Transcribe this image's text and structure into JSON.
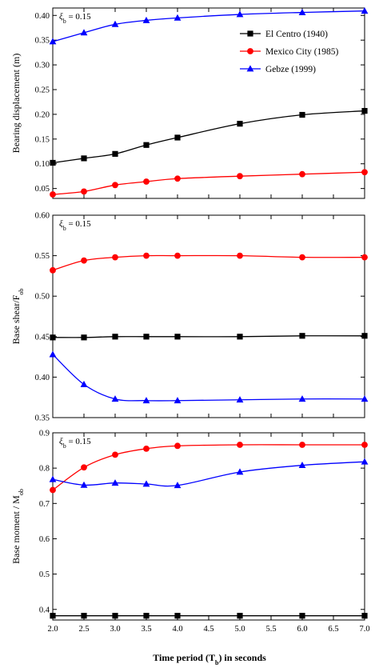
{
  "xlabel": "Time period (T",
  "xlabel_sub": "b",
  "xlabel_tail": ") in seconds",
  "colors": {
    "el_centro": "#000000",
    "mexico": "#ff0000",
    "gebze": "#0000ff"
  },
  "chart_data": [
    {
      "type": "line",
      "ylabel": "Bearing displacement (m)",
      "annotation_symbol": "ξ",
      "annotation_sub": "b",
      "annotation_tail": " = 0.15",
      "xlim": [
        2.0,
        7.0
      ],
      "ylim": [
        0.03,
        0.415
      ],
      "yticks": [
        "0.05",
        "0.10",
        "0.15",
        "0.20",
        "0.25",
        "0.30",
        "0.35",
        "0.40"
      ],
      "x": [
        2.0,
        2.5,
        3.0,
        3.5,
        4.0,
        5.0,
        6.0,
        7.0
      ],
      "legend_position": "top-right",
      "series": [
        {
          "name": "El Centro (1940)",
          "marker": "square",
          "color_key": "el_centro",
          "values": [
            0.102,
            0.111,
            0.12,
            0.138,
            0.153,
            0.181,
            0.199,
            0.207
          ]
        },
        {
          "name": "Mexico City (1985)",
          "marker": "circle",
          "color_key": "mexico",
          "values": [
            0.038,
            0.044,
            0.057,
            0.064,
            0.07,
            0.075,
            0.079,
            0.083
          ]
        },
        {
          "name": "Gebze (1999)",
          "marker": "triangle",
          "color_key": "gebze",
          "values": [
            0.347,
            0.365,
            0.382,
            0.39,
            0.395,
            0.402,
            0.406,
            0.409
          ]
        }
      ]
    },
    {
      "type": "line",
      "ylabel": "Base shear/F",
      "ylabel_sub": "ob",
      "annotation_symbol": "ξ",
      "annotation_sub": "b",
      "annotation_tail": " = 0.15",
      "xlim": [
        2.0,
        7.0
      ],
      "ylim": [
        0.35,
        0.6
      ],
      "yticks": [
        "0.35",
        "0.40",
        "0.45",
        "0.50",
        "0.55",
        "0.60"
      ],
      "x": [
        2.0,
        2.5,
        3.0,
        3.5,
        4.0,
        5.0,
        6.0,
        7.0
      ],
      "series": [
        {
          "name": "El Centro (1940)",
          "marker": "square",
          "color_key": "el_centro",
          "values": [
            0.449,
            0.449,
            0.45,
            0.45,
            0.45,
            0.45,
            0.451,
            0.451
          ]
        },
        {
          "name": "Mexico City (1985)",
          "marker": "circle",
          "color_key": "mexico",
          "values": [
            0.532,
            0.544,
            0.548,
            0.55,
            0.55,
            0.55,
            0.548,
            0.548
          ]
        },
        {
          "name": "Gebze (1999)",
          "marker": "triangle",
          "color_key": "gebze",
          "values": [
            0.428,
            0.391,
            0.373,
            0.371,
            0.371,
            0.372,
            0.373,
            0.373
          ]
        }
      ]
    },
    {
      "type": "line",
      "ylabel": "Base moment / M",
      "ylabel_sub": "ob",
      "annotation_symbol": "ξ",
      "annotation_sub": "b",
      "annotation_tail": " = 0.15",
      "xlim": [
        2.0,
        7.0
      ],
      "ylim": [
        0.37,
        0.9
      ],
      "yticks": [
        "0.4",
        "0.5",
        "0.6",
        "0.7",
        "0.8",
        "0.9"
      ],
      "xticks": [
        "2.0",
        "2.5",
        "3.0",
        "3.5",
        "4.0",
        "4.5",
        "5.0",
        "5.5",
        "6.0",
        "6.5",
        "7.0"
      ],
      "x": [
        2.0,
        2.5,
        3.0,
        3.5,
        4.0,
        5.0,
        6.0,
        7.0
      ],
      "series": [
        {
          "name": "El Centro (1940)",
          "marker": "square",
          "color_key": "el_centro",
          "values": [
            0.382,
            0.382,
            0.382,
            0.382,
            0.382,
            0.382,
            0.382,
            0.382
          ]
        },
        {
          "name": "Mexico City (1985)",
          "marker": "circle",
          "color_key": "mexico",
          "values": [
            0.738,
            0.802,
            0.838,
            0.855,
            0.863,
            0.866,
            0.866,
            0.866
          ]
        },
        {
          "name": "Gebze (1999)",
          "marker": "triangle",
          "color_key": "gebze",
          "values": [
            0.768,
            0.752,
            0.758,
            0.755,
            0.751,
            0.789,
            0.808,
            0.818
          ]
        }
      ]
    }
  ]
}
